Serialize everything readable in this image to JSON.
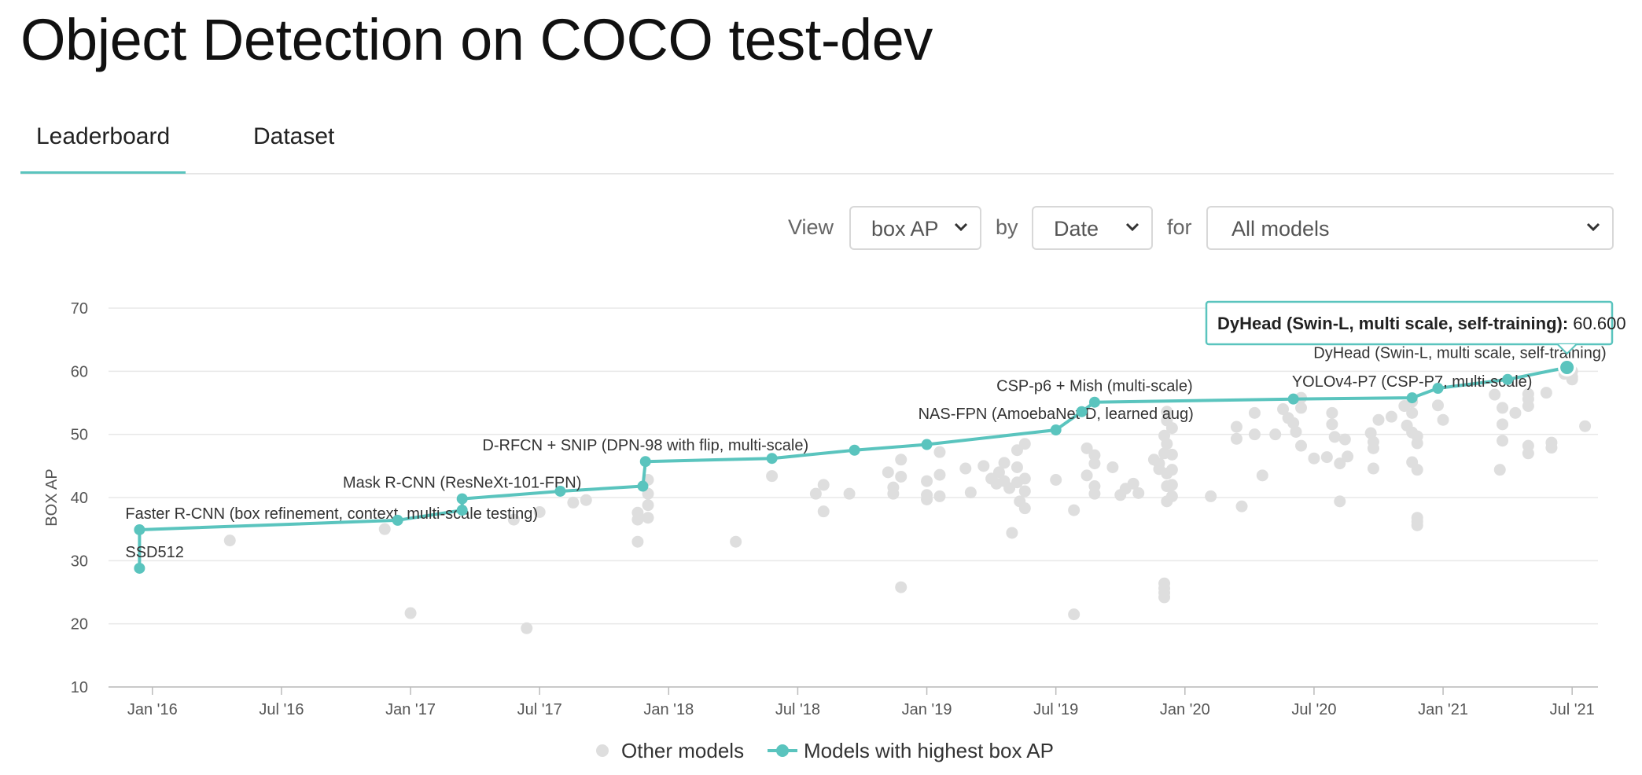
{
  "page": {
    "title": "Object Detection on COCO test-dev"
  },
  "tabs": [
    {
      "label": "Leaderboard",
      "active": true
    },
    {
      "label": "Dataset",
      "active": false
    }
  ],
  "controls": {
    "view_label": "View",
    "view_value": "box AP",
    "by_label": "by",
    "by_value": "Date",
    "for_label": "for",
    "for_value": "All models"
  },
  "colors": {
    "accent": "#5ac4be",
    "other_points": "#dedede",
    "grid": "#e8e8e8"
  },
  "chart_data": {
    "type": "scatter",
    "ylabel": "BOX AP",
    "ylim": [
      10,
      70
    ],
    "yticks": [
      10,
      20,
      30,
      40,
      50,
      60,
      70
    ],
    "xlim": [
      2015.83,
      2021.6
    ],
    "xticks": [
      {
        "label": "Jan '16",
        "x": 2016.0
      },
      {
        "label": "Jul '16",
        "x": 2016.5
      },
      {
        "label": "Jan '17",
        "x": 2017.0
      },
      {
        "label": "Jul '17",
        "x": 2017.5
      },
      {
        "label": "Jan '18",
        "x": 2018.0
      },
      {
        "label": "Jul '18",
        "x": 2018.5
      },
      {
        "label": "Jan '19",
        "x": 2019.0
      },
      {
        "label": "Jul '19",
        "x": 2019.5
      },
      {
        "label": "Jan '20",
        "x": 2020.0
      },
      {
        "label": "Jul '20",
        "x": 2020.5
      },
      {
        "label": "Jan '21",
        "x": 2021.0
      },
      {
        "label": "Jul '21",
        "x": 2021.5
      }
    ],
    "legend": [
      {
        "label": "Other models",
        "series": "other"
      },
      {
        "label": "Models with highest box AP",
        "series": "sota"
      }
    ],
    "sota_series": {
      "name": "Models with highest box AP",
      "points": [
        {
          "x": 2015.95,
          "y": 28.8
        },
        {
          "x": 2015.95,
          "y": 34.9
        },
        {
          "x": 2016.95,
          "y": 36.4
        },
        {
          "x": 2017.2,
          "y": 38.0
        },
        {
          "x": 2017.2,
          "y": 39.8
        },
        {
          "x": 2017.58,
          "y": 41.0
        },
        {
          "x": 2017.9,
          "y": 41.8
        },
        {
          "x": 2017.91,
          "y": 45.7
        },
        {
          "x": 2018.4,
          "y": 46.2
        },
        {
          "x": 2018.72,
          "y": 47.5
        },
        {
          "x": 2019.0,
          "y": 48.4
        },
        {
          "x": 2019.5,
          "y": 50.7
        },
        {
          "x": 2019.6,
          "y": 53.6
        },
        {
          "x": 2019.65,
          "y": 55.1
        },
        {
          "x": 2020.42,
          "y": 55.6
        },
        {
          "x": 2020.88,
          "y": 55.8
        },
        {
          "x": 2020.98,
          "y": 57.3
        },
        {
          "x": 2021.25,
          "y": 58.7
        },
        {
          "x": 2021.48,
          "y": 60.6
        }
      ]
    },
    "annotations": [
      {
        "text": "SSD512",
        "x": 2015.95,
        "y": 28.8,
        "pos": "above"
      },
      {
        "text": "Faster R-CNN (box refinement, context, multi-scale testing)",
        "x": 2015.95,
        "y": 34.9,
        "pos": "above"
      },
      {
        "text": "Mask R-CNN (ResNeXt-101-FPN)",
        "x": 2017.2,
        "y": 39.8,
        "pos": "above-mid"
      },
      {
        "text": "D-RFCN + SNIP (DPN-98 with flip, multi-scale)",
        "x": 2017.91,
        "y": 45.7,
        "pos": "above-mid"
      },
      {
        "text": "NAS-FPN (AmoebaNet-D, learned aug)",
        "x": 2019.5,
        "y": 50.7,
        "pos": "above-mid"
      },
      {
        "text": "CSP-p6 + Mish (multi-scale)",
        "x": 2019.65,
        "y": 55.1,
        "pos": "above-mid"
      },
      {
        "text": "YOLOv4-P7 (CSP-P7, multi-scale)",
        "x": 2020.88,
        "y": 55.8,
        "pos": "above-mid"
      },
      {
        "text": "DyHead (Swin-L, multi scale, self-training)",
        "x": 2021.48,
        "y": 60.6,
        "pos": "above-right"
      }
    ],
    "tooltip": {
      "model": "DyHead (Swin-L, multi scale, self-training):",
      "value": "60.600"
    },
    "other_points": [
      [
        2016.3,
        33.2
      ],
      [
        2016.9,
        35.0
      ],
      [
        2017.0,
        21.7
      ],
      [
        2017.45,
        19.3
      ],
      [
        2017.4,
        36.5
      ],
      [
        2017.5,
        37.7
      ],
      [
        2017.63,
        39.2
      ],
      [
        2017.68,
        39.6
      ],
      [
        2017.88,
        37.6
      ],
      [
        2017.88,
        36.5
      ],
      [
        2017.88,
        33.0
      ],
      [
        2017.92,
        42.8
      ],
      [
        2017.92,
        40.6
      ],
      [
        2017.92,
        38.8
      ],
      [
        2017.92,
        36.8
      ],
      [
        2018.26,
        33.0
      ],
      [
        2018.4,
        43.4
      ],
      [
        2018.57,
        40.6
      ],
      [
        2018.6,
        42.0
      ],
      [
        2018.6,
        37.8
      ],
      [
        2018.7,
        40.6
      ],
      [
        2018.85,
        44.0
      ],
      [
        2018.87,
        41.6
      ],
      [
        2018.87,
        40.6
      ],
      [
        2018.9,
        46.0
      ],
      [
        2018.9,
        43.3
      ],
      [
        2018.9,
        25.8
      ],
      [
        2019.0,
        42.6
      ],
      [
        2019.0,
        39.7
      ],
      [
        2019.0,
        40.4
      ],
      [
        2019.05,
        47.2
      ],
      [
        2019.05,
        43.6
      ],
      [
        2019.05,
        40.2
      ],
      [
        2019.15,
        44.6
      ],
      [
        2019.17,
        40.8
      ],
      [
        2019.22,
        45.0
      ],
      [
        2019.25,
        43.0
      ],
      [
        2019.27,
        42.2
      ],
      [
        2019.28,
        44.0
      ],
      [
        2019.3,
        45.5
      ],
      [
        2019.3,
        42.6
      ],
      [
        2019.32,
        41.5
      ],
      [
        2019.33,
        34.4
      ],
      [
        2019.35,
        47.5
      ],
      [
        2019.35,
        44.8
      ],
      [
        2019.35,
        42.4
      ],
      [
        2019.36,
        39.4
      ],
      [
        2019.38,
        48.5
      ],
      [
        2019.38,
        43.0
      ],
      [
        2019.38,
        41.0
      ],
      [
        2019.38,
        38.3
      ],
      [
        2019.5,
        42.8
      ],
      [
        2019.57,
        38.0
      ],
      [
        2019.57,
        21.5
      ],
      [
        2019.62,
        47.8
      ],
      [
        2019.62,
        43.5
      ],
      [
        2019.65,
        46.7
      ],
      [
        2019.65,
        45.4
      ],
      [
        2019.65,
        41.8
      ],
      [
        2019.65,
        40.6
      ],
      [
        2019.72,
        44.8
      ],
      [
        2019.75,
        40.4
      ],
      [
        2019.77,
        41.4
      ],
      [
        2019.8,
        42.2
      ],
      [
        2019.82,
        40.7
      ],
      [
        2019.88,
        46.0
      ],
      [
        2019.9,
        45.4
      ],
      [
        2019.9,
        44.5
      ],
      [
        2019.92,
        49.8
      ],
      [
        2019.92,
        47.0
      ],
      [
        2019.92,
        26.4
      ],
      [
        2019.92,
        25.6
      ],
      [
        2019.92,
        24.9
      ],
      [
        2019.92,
        24.2
      ],
      [
        2019.93,
        53.6
      ],
      [
        2019.93,
        52.2
      ],
      [
        2019.93,
        48.5
      ],
      [
        2019.93,
        43.8
      ],
      [
        2019.93,
        41.8
      ],
      [
        2019.93,
        39.4
      ],
      [
        2019.95,
        51.0
      ],
      [
        2019.95,
        46.8
      ],
      [
        2019.95,
        44.4
      ],
      [
        2019.95,
        42.0
      ],
      [
        2019.95,
        40.2
      ],
      [
        2020.1,
        40.2
      ],
      [
        2020.2,
        51.2
      ],
      [
        2020.2,
        49.3
      ],
      [
        2020.22,
        38.6
      ],
      [
        2020.27,
        53.4
      ],
      [
        2020.27,
        50.0
      ],
      [
        2020.3,
        43.5
      ],
      [
        2020.35,
        50.0
      ],
      [
        2020.38,
        54.0
      ],
      [
        2020.4,
        52.6
      ],
      [
        2020.42,
        51.8
      ],
      [
        2020.43,
        50.4
      ],
      [
        2020.45,
        55.8
      ],
      [
        2020.45,
        54.2
      ],
      [
        2020.45,
        48.2
      ],
      [
        2020.5,
        46.2
      ],
      [
        2020.55,
        46.4
      ],
      [
        2020.57,
        53.4
      ],
      [
        2020.57,
        51.6
      ],
      [
        2020.58,
        49.6
      ],
      [
        2020.6,
        45.4
      ],
      [
        2020.6,
        39.4
      ],
      [
        2020.62,
        49.2
      ],
      [
        2020.63,
        46.5
      ],
      [
        2020.72,
        50.2
      ],
      [
        2020.73,
        48.8
      ],
      [
        2020.73,
        47.8
      ],
      [
        2020.73,
        44.6
      ],
      [
        2020.75,
        52.3
      ],
      [
        2020.8,
        52.8
      ],
      [
        2020.85,
        54.5
      ],
      [
        2020.86,
        51.4
      ],
      [
        2020.88,
        55.2
      ],
      [
        2020.88,
        53.4
      ],
      [
        2020.88,
        50.3
      ],
      [
        2020.88,
        45.6
      ],
      [
        2020.9,
        49.7
      ],
      [
        2020.9,
        48.6
      ],
      [
        2020.9,
        44.4
      ],
      [
        2020.9,
        36.8
      ],
      [
        2020.9,
        36.2
      ],
      [
        2020.9,
        35.6
      ],
      [
        2020.98,
        54.6
      ],
      [
        2021.0,
        52.3
      ],
      [
        2021.2,
        56.3
      ],
      [
        2021.22,
        44.4
      ],
      [
        2021.23,
        54.2
      ],
      [
        2021.23,
        51.6
      ],
      [
        2021.23,
        49.0
      ],
      [
        2021.28,
        53.4
      ],
      [
        2021.33,
        56.4
      ],
      [
        2021.33,
        55.6
      ],
      [
        2021.33,
        54.5
      ],
      [
        2021.33,
        48.2
      ],
      [
        2021.33,
        47.0
      ],
      [
        2021.4,
        56.6
      ],
      [
        2021.42,
        48.7
      ],
      [
        2021.42,
        47.9
      ],
      [
        2021.47,
        59.6
      ],
      [
        2021.5,
        59.1
      ],
      [
        2021.5,
        58.7
      ],
      [
        2021.5,
        60.0
      ],
      [
        2021.55,
        51.3
      ]
    ]
  }
}
